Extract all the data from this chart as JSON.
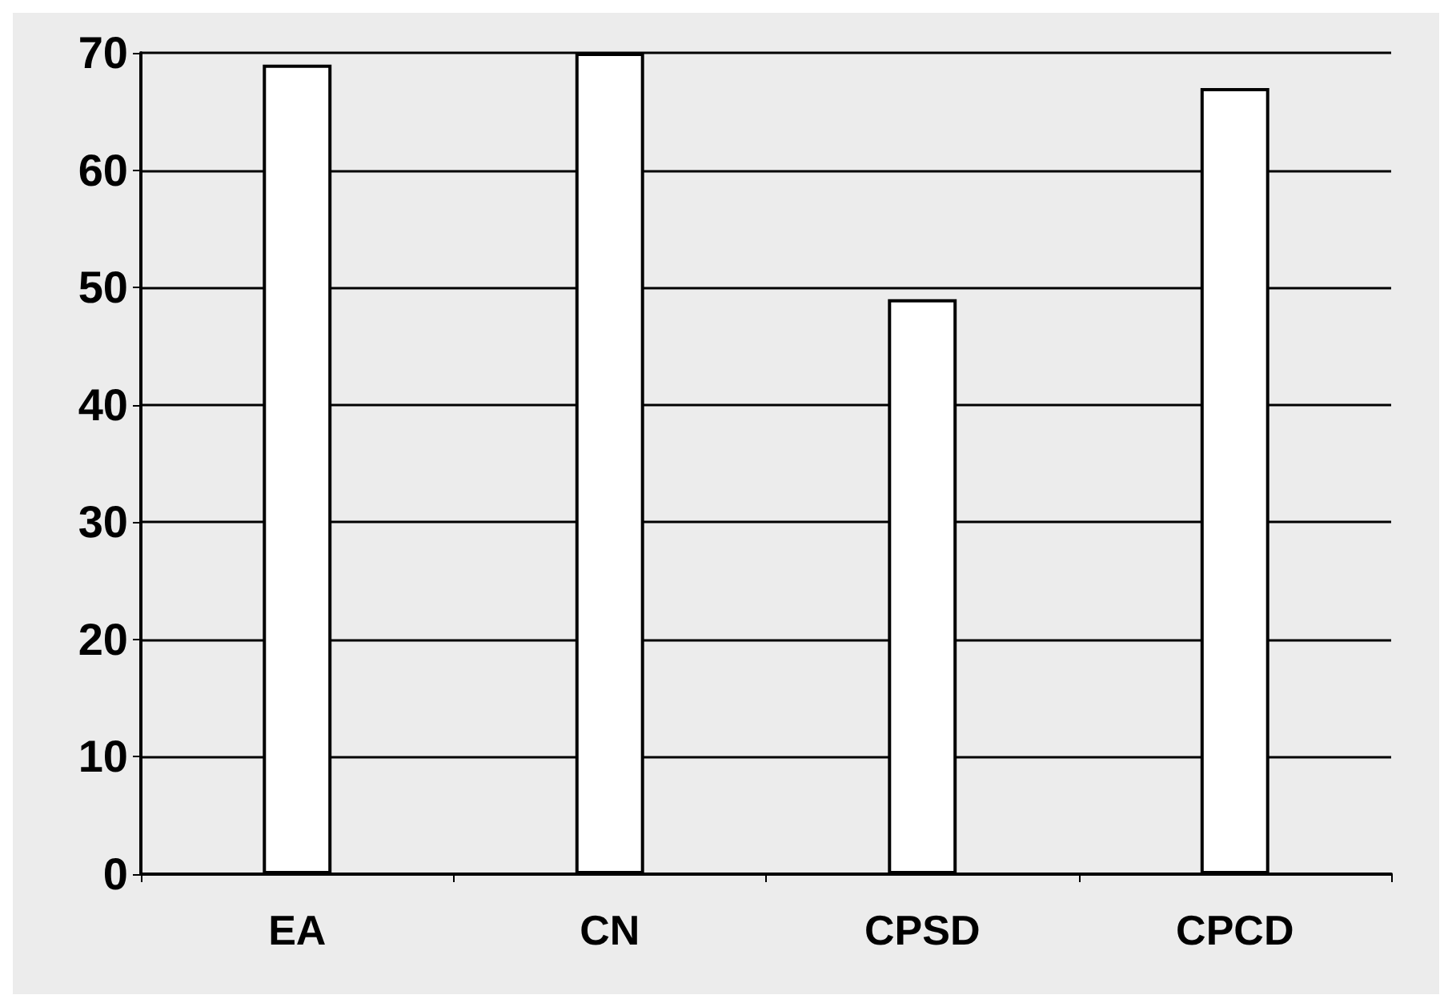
{
  "chart_data": {
    "type": "bar",
    "categories": [
      "EA",
      "CN",
      "CPSD",
      "CPCD"
    ],
    "values": [
      69,
      70,
      49,
      67
    ],
    "color": "#ffffff",
    "ylim": [
      0,
      70
    ],
    "yticks": [
      0,
      10,
      20,
      30,
      40,
      50,
      60,
      70
    ],
    "grid": "y"
  }
}
